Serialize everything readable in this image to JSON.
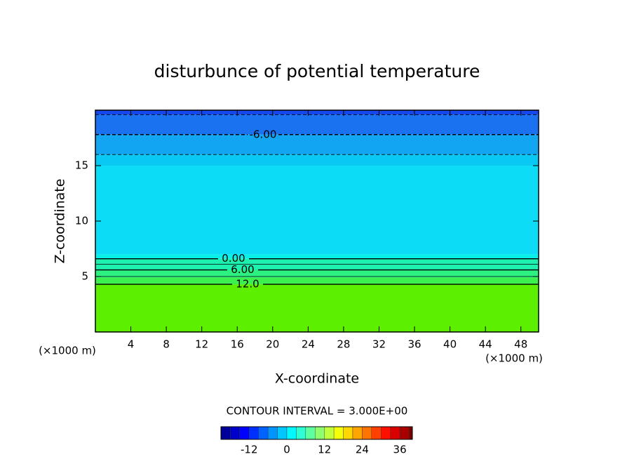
{
  "chart_data": {
    "type": "contour",
    "title": "disturbunce of potential temperature",
    "xlabel": "X-coordinate",
    "ylabel": "Z-coordinate",
    "x_unit": "(×1000 m)",
    "x_unit_right": "(×1000 m)",
    "xlim": [
      0,
      50
    ],
    "xticks": [
      4,
      8,
      12,
      16,
      20,
      24,
      28,
      32,
      36,
      40,
      44,
      48
    ],
    "ylim": [
      0,
      20
    ],
    "yticks": [
      5,
      10,
      15
    ],
    "fill_bands": [
      {
        "z": [
          0,
          4.3
        ],
        "color": "#5cf000"
      },
      {
        "z": [
          4.3,
          4.9
        ],
        "color": "#3cf050"
      },
      {
        "z": [
          4.9,
          5.6
        ],
        "color": "#2cf080"
      },
      {
        "z": [
          5.6,
          6.6
        ],
        "color": "#1ef0b0"
      },
      {
        "z": [
          6.6,
          7
        ],
        "color": "#08f0e8"
      },
      {
        "z": [
          7,
          15
        ],
        "color": "#0cdcf6"
      },
      {
        "z": [
          15,
          16
        ],
        "color": "#0ac8f4"
      },
      {
        "z": [
          16,
          17.8
        ],
        "color": "#12a6f2"
      },
      {
        "z": [
          17.8,
          19.6
        ],
        "color": "#1a72f0"
      },
      {
        "z": [
          19.6,
          20
        ],
        "color": "#1448ee"
      }
    ],
    "contours": [
      {
        "value": -9,
        "z": 19.6,
        "dashed": true
      },
      {
        "value": -6,
        "z": 17.8,
        "dashed": true,
        "label": "-6.00"
      },
      {
        "value": -3,
        "z": 16,
        "dashed": true
      },
      {
        "value": 0,
        "z": 6.6,
        "dashed": false,
        "label": "0.00"
      },
      {
        "value": 3,
        "z": 6.1,
        "dashed": false
      },
      {
        "value": 6,
        "z": 5.6,
        "dashed": false,
        "label": "6.00"
      },
      {
        "value": 9,
        "z": 5.0,
        "dashed": false
      },
      {
        "value": 12,
        "z": 4.3,
        "dashed": false,
        "label": "12.0"
      }
    ],
    "contour_note": "CONTOUR INTERVAL = 3.000E+00",
    "contour_interval": 3,
    "colorbar_lim": [
      -21,
      40
    ],
    "colorbar_ticks": [
      -12,
      0,
      12,
      24,
      36
    ]
  }
}
